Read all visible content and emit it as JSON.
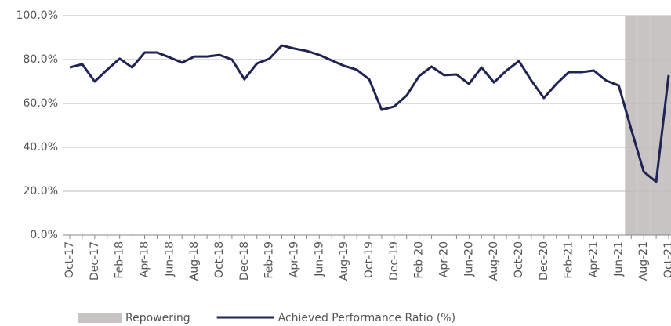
{
  "chart_data": {
    "type": "line",
    "categories": [
      "Oct-17",
      null,
      "Dec-17",
      null,
      "Feb-18",
      null,
      "Apr-18",
      null,
      "Jun-18",
      null,
      "Aug-18",
      null,
      "Oct-18",
      null,
      "Dec-18",
      null,
      "Feb-19",
      null,
      "Apr-19",
      null,
      "Jun-19",
      null,
      "Aug-19",
      null,
      "Oct-19",
      null,
      "Dec-19",
      null,
      "Feb-20",
      null,
      "Apr-20",
      null,
      "Jun-20",
      null,
      "Aug-20",
      null,
      "Oct-20",
      null,
      "Dec-20",
      null,
      "Feb-21",
      null,
      "Apr-21",
      null,
      "Jun-21",
      null,
      "Aug-21",
      null,
      "Oct-21"
    ],
    "series": [
      {
        "name": "Repowering",
        "type": "bar",
        "color": "#c9c4c4",
        "values": [
          null,
          null,
          null,
          null,
          null,
          null,
          null,
          null,
          null,
          null,
          null,
          null,
          null,
          null,
          null,
          null,
          null,
          null,
          null,
          null,
          null,
          null,
          null,
          null,
          null,
          null,
          null,
          null,
          null,
          null,
          null,
          null,
          null,
          null,
          null,
          null,
          null,
          null,
          null,
          null,
          null,
          null,
          null,
          null,
          null,
          100,
          100,
          100,
          100
        ]
      },
      {
        "name": "Achieved Performance Ratio (%)",
        "type": "line",
        "color": "#1f2452",
        "values": [
          76.4,
          77.9,
          70,
          75.4,
          80.4,
          76.4,
          83.2,
          83.2,
          81,
          78.6,
          81.4,
          81.4,
          82.1,
          80,
          71,
          78.2,
          80.4,
          86.4,
          85,
          83.9,
          82.1,
          79.6,
          77.1,
          75.4,
          71,
          57.1,
          58.6,
          63.6,
          72.5,
          76.8,
          72.9,
          73.2,
          68.9,
          76.4,
          69.6,
          75,
          79.3,
          70.4,
          62.5,
          68.9,
          74.3,
          74.3,
          75,
          70.4,
          68.2,
          48.2,
          28.9,
          24.3,
          72.9
        ]
      }
    ],
    "ylim": [
      0,
      100
    ],
    "yticks": [
      {
        "value": 0,
        "label": "0.0%"
      },
      {
        "value": 20,
        "label": "20.0%"
      },
      {
        "value": 40,
        "label": "40.0%"
      },
      {
        "value": 60,
        "label": "60.0%"
      },
      {
        "value": 80,
        "label": "80.0%"
      },
      {
        "value": 100,
        "label": "100.0%"
      }
    ],
    "grid": true,
    "legend": "bottom"
  }
}
